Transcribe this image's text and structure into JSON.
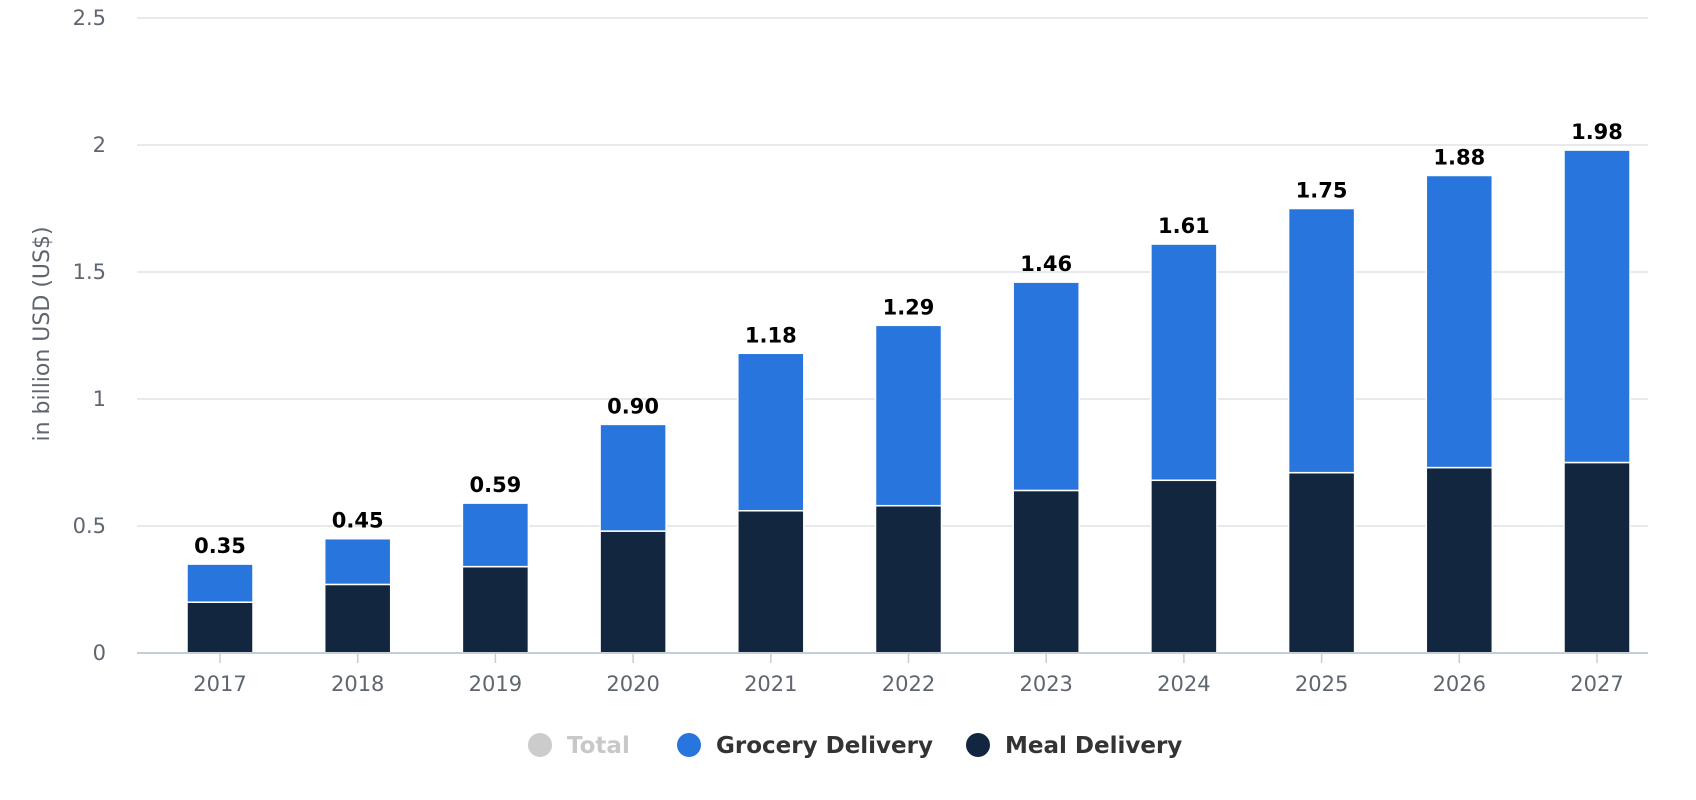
{
  "chart_data": {
    "type": "bar",
    "stacked": true,
    "categories": [
      "2017",
      "2018",
      "2019",
      "2020",
      "2021",
      "2022",
      "2023",
      "2024",
      "2025",
      "2026",
      "2027"
    ],
    "series": [
      {
        "name": "Meal Delivery",
        "color": "#12263f",
        "values": [
          0.2,
          0.27,
          0.34,
          0.48,
          0.56,
          0.58,
          0.64,
          0.68,
          0.71,
          0.73,
          0.75
        ]
      },
      {
        "name": "Grocery Delivery",
        "color": "#2876dd",
        "values": [
          0.15,
          0.18,
          0.25,
          0.42,
          0.62,
          0.71,
          0.82,
          0.93,
          1.04,
          1.15,
          1.23
        ]
      }
    ],
    "totals_labels": [
      "0.35",
      "0.45",
      "0.59",
      "0.90",
      "1.18",
      "1.29",
      "1.46",
      "1.61",
      "1.75",
      "1.88",
      "1.98"
    ],
    "ylabel": "in billion USD (US$)",
    "ylim": [
      0,
      2.5
    ],
    "yticks": [
      "0",
      "0.5",
      "1",
      "1.5",
      "2",
      "2.5"
    ],
    "ytick_values": [
      0,
      0.5,
      1,
      1.5,
      2,
      2.5
    ],
    "grid": true,
    "legend_position": "bottom-center",
    "legend": [
      {
        "label": "Total",
        "color": "#cccccc",
        "text_color": "#c8c8c8",
        "state": "hidden"
      },
      {
        "label": "Grocery Delivery",
        "color": "#2876dd",
        "text_color": "#333333"
      },
      {
        "label": "Meal Delivery",
        "color": "#12263f",
        "text_color": "#333333"
      }
    ]
  }
}
